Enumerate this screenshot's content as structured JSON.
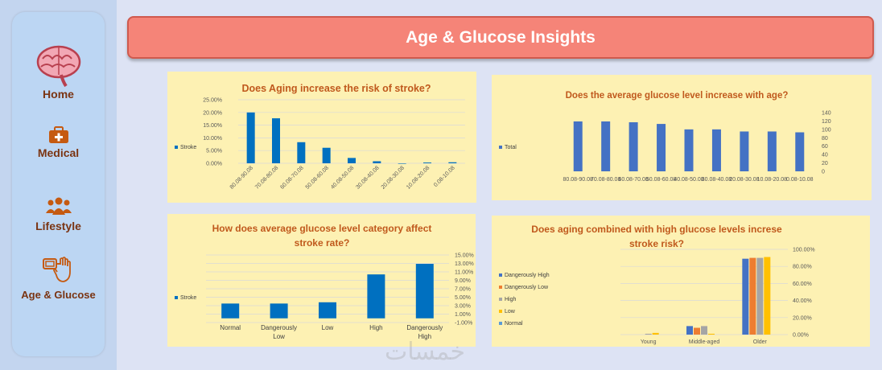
{
  "header": {
    "title": "Age & Glucose Insights"
  },
  "sidebar": {
    "items": [
      {
        "label": "Home",
        "icon": "brain-icon"
      },
      {
        "label": "Medical",
        "icon": "medical-kit-icon"
      },
      {
        "label": "Lifestyle",
        "icon": "people-icon"
      },
      {
        "label": "Age & Glucose",
        "icon": "glucose-meter-icon"
      }
    ]
  },
  "watermark": "خمسات",
  "colors": {
    "bar_blue": "#0070c0",
    "bar_mid": "#4472c4",
    "title": "#c0591d",
    "panel": "#fdf1b3",
    "header": "#f58478"
  },
  "chart_data": [
    {
      "type": "bar",
      "title": "Does Aging increase the risk of stroke?",
      "categories": [
        "80.08-90.08",
        "70.08-80.08",
        "60.08-70.08",
        "50.08-60.08",
        "40.08-50.08",
        "30.08-40.08",
        "20.08-30.08",
        "10.08-20.08",
        "0.08-10.08"
      ],
      "series": [
        {
          "name": "Stroke",
          "values": [
            0.2,
            0.177,
            0.083,
            0.061,
            0.021,
            0.008,
            0.0,
            0.003,
            0.004
          ]
        }
      ],
      "ylim": [
        0,
        0.25
      ],
      "yticks": [
        "25.00%",
        "20.00%",
        "15.00%",
        "10.00%",
        "5.00%",
        "0.00%"
      ],
      "legend_position": "left",
      "grid": true
    },
    {
      "type": "bar",
      "title": "Does the average glucose level increase with age?",
      "categories": [
        "80.08-90.08",
        "70.08-80.08",
        "60.08-70.08",
        "50.08-60.08",
        "40.08-50.08",
        "30.08-40.08",
        "20.08-30.08",
        "10.08-20.08",
        "0.08-10.08"
      ],
      "series": [
        {
          "name": "Total",
          "values": [
            119,
            119,
            117,
            113,
            100,
            100,
            95,
            95,
            93
          ]
        }
      ],
      "ylim": [
        0,
        140
      ],
      "yticks": [
        "140",
        "120",
        "100",
        "80",
        "60",
        "40",
        "20",
        "0"
      ],
      "y_axis_side": "right",
      "legend_position": "left",
      "grid": false
    },
    {
      "type": "bar",
      "title": "How does average glucose level category affect stroke rate?",
      "categories": [
        "Normal",
        "Dangerously Low",
        "Low",
        "High",
        "Dangerously High"
      ],
      "series": [
        {
          "name": "Stroke",
          "values": [
            0.035,
            0.035,
            0.038,
            0.104,
            0.129
          ]
        }
      ],
      "ylim": [
        -0.01,
        0.15
      ],
      "yticks": [
        "15.00%",
        "13.00%",
        "11.00%",
        "9.00%",
        "7.00%",
        "5.00%",
        "3.00%",
        "1.00%",
        "-1.00%"
      ],
      "y_axis_side": "right",
      "legend_position": "left",
      "grid": true
    },
    {
      "type": "bar",
      "title": "Does aging combined with high glucose levels increse stroke risk?",
      "categories": [
        "Young",
        "Middle-aged",
        "Older"
      ],
      "series": [
        {
          "name": "Dangerously High",
          "values": [
            0.0,
            0.1,
            0.89
          ]
        },
        {
          "name": "Dangerously Low",
          "values": [
            0.0,
            0.08,
            0.9
          ]
        },
        {
          "name": "High",
          "values": [
            0.01,
            0.1,
            0.9
          ]
        },
        {
          "name": "Low",
          "values": [
            0.02,
            0.01,
            0.91
          ]
        },
        {
          "name": "Normal",
          "values": [
            0.0,
            0.0,
            0.0
          ]
        }
      ],
      "series_colors": [
        "#4472c4",
        "#ed7d31",
        "#a5a5a5",
        "#ffc000",
        "#5b9bd5"
      ],
      "ylim": [
        0,
        1.0
      ],
      "yticks": [
        "100.00%",
        "80.00%",
        "60.00%",
        "40.00%",
        "20.00%",
        "0.00%"
      ],
      "y_axis_side": "right",
      "legend_position": "left",
      "grid": true
    }
  ]
}
